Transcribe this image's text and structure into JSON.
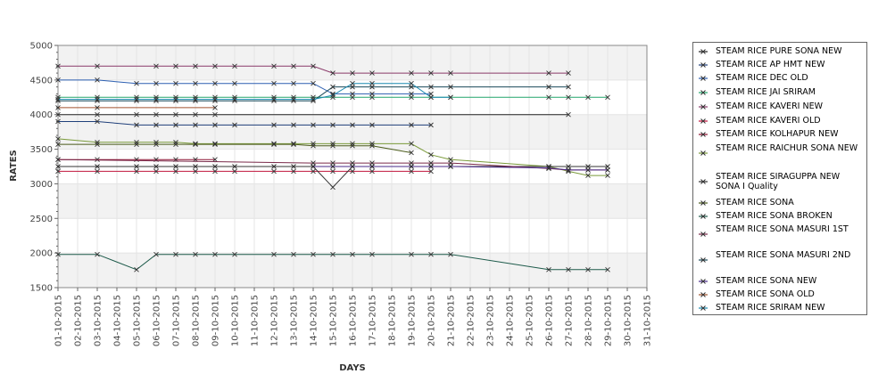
{
  "chart_data": {
    "type": "line",
    "title": "",
    "xlabel": "DAYS",
    "ylabel": "RATES",
    "ylim": [
      1500,
      5000
    ],
    "yticks": [
      "1500",
      "2000",
      "2500",
      "3000",
      "3500",
      "4000",
      "4500",
      "5000"
    ],
    "x": [
      "01-10-2015",
      "02-10-2015",
      "03-10-2015",
      "04-10-2015",
      "05-10-2015",
      "06-10-2015",
      "07-10-2015",
      "08-10-2015",
      "09-10-2015",
      "10-10-2015",
      "11-10-2015",
      "12-10-2015",
      "13-10-2015",
      "14-10-2015",
      "15-10-2015",
      "16-10-2015",
      "17-10-2015",
      "18-10-2015",
      "19-10-2015",
      "20-10-2015",
      "21-10-2015",
      "22-10-2015",
      "23-10-2015",
      "24-10-2015",
      "25-10-2015",
      "26-10-2015",
      "27-10-2015",
      "28-10-2015",
      "29-10-2015",
      "30-10-2015",
      "31-10-2015"
    ],
    "grid": true,
    "legend_position": "right",
    "series": [
      {
        "name": " STEAM RICE PURE SONA NEW",
        "color": "#222222",
        "points": [
          [
            0,
            4000
          ],
          [
            2,
            4000
          ],
          [
            4,
            4000
          ],
          [
            5,
            4000
          ],
          [
            6,
            4000
          ],
          [
            7,
            4000
          ],
          [
            8,
            4000
          ],
          [
            26,
            4000
          ]
        ]
      },
      {
        "name": "STEAM RICE AP HMT NEW",
        "color": "#1f3f7a",
        "points": [
          [
            0,
            3900
          ],
          [
            2,
            3900
          ],
          [
            4,
            3850
          ],
          [
            5,
            3850
          ],
          [
            6,
            3850
          ],
          [
            7,
            3850
          ],
          [
            8,
            3850
          ],
          [
            9,
            3850
          ],
          [
            11,
            3850
          ],
          [
            12,
            3850
          ],
          [
            13,
            3850
          ],
          [
            14,
            3850
          ],
          [
            15,
            3850
          ],
          [
            16,
            3850
          ],
          [
            18,
            3850
          ],
          [
            19,
            3850
          ]
        ]
      },
      {
        "name": "STEAM RICE DEC OLD",
        "color": "#2a5db0",
        "points": [
          [
            0,
            4500
          ],
          [
            2,
            4500
          ],
          [
            4,
            4450
          ],
          [
            5,
            4450
          ],
          [
            6,
            4450
          ],
          [
            7,
            4450
          ],
          [
            8,
            4450
          ],
          [
            9,
            4450
          ],
          [
            11,
            4450
          ],
          [
            12,
            4450
          ],
          [
            13,
            4450
          ],
          [
            14,
            4300
          ],
          [
            15,
            4300
          ],
          [
            16,
            4300
          ],
          [
            18,
            4300
          ],
          [
            19,
            4300
          ]
        ]
      },
      {
        "name": "STEAM RICE JAI SRIRAM",
        "color": "#22a66b",
        "points": [
          [
            0,
            4250
          ],
          [
            2,
            4250
          ],
          [
            4,
            4250
          ],
          [
            5,
            4250
          ],
          [
            6,
            4250
          ],
          [
            7,
            4250
          ],
          [
            8,
            4250
          ],
          [
            9,
            4250
          ],
          [
            11,
            4250
          ],
          [
            12,
            4250
          ],
          [
            13,
            4250
          ],
          [
            14,
            4250
          ],
          [
            15,
            4250
          ],
          [
            16,
            4250
          ],
          [
            18,
            4250
          ],
          [
            19,
            4250
          ],
          [
            20,
            4250
          ],
          [
            25,
            4250
          ],
          [
            26,
            4250
          ],
          [
            27,
            4250
          ],
          [
            28,
            4250
          ]
        ]
      },
      {
        "name": "STEAM RICE KAVERI NEW",
        "color": "#8a3a6a",
        "points": [
          [
            0,
            4700
          ],
          [
            2,
            4700
          ],
          [
            5,
            4700
          ],
          [
            6,
            4700
          ],
          [
            7,
            4700
          ],
          [
            8,
            4700
          ],
          [
            9,
            4700
          ],
          [
            11,
            4700
          ],
          [
            12,
            4700
          ],
          [
            13,
            4700
          ],
          [
            14,
            4600
          ],
          [
            15,
            4600
          ],
          [
            16,
            4600
          ],
          [
            18,
            4600
          ],
          [
            19,
            4600
          ],
          [
            20,
            4600
          ],
          [
            25,
            4600
          ],
          [
            26,
            4600
          ]
        ]
      },
      {
        "name": "STEAM RICE KAVERI OLD",
        "color": "#c0143c",
        "points": [
          [
            0,
            3180
          ],
          [
            2,
            3180
          ],
          [
            4,
            3180
          ],
          [
            5,
            3180
          ],
          [
            6,
            3180
          ],
          [
            7,
            3180
          ],
          [
            8,
            3180
          ],
          [
            9,
            3180
          ],
          [
            11,
            3180
          ],
          [
            12,
            3180
          ],
          [
            13,
            3180
          ],
          [
            14,
            3180
          ],
          [
            15,
            3180
          ],
          [
            16,
            3180
          ],
          [
            18,
            3180
          ],
          [
            19,
            3180
          ]
        ]
      },
      {
        "name": "STEAM RICE KOLHAPUR NEW",
        "color": "#8b1030",
        "points": [
          [
            0,
            3350
          ],
          [
            2,
            3350
          ],
          [
            4,
            3350
          ],
          [
            5,
            3350
          ],
          [
            6,
            3350
          ],
          [
            7,
            3350
          ],
          [
            8,
            3350
          ]
        ]
      },
      {
        "name": "STEAM RICE RAICHUR SONA NEW",
        "color": "#7a9a3a",
        "points": [
          [
            0,
            3650
          ],
          [
            2,
            3600
          ],
          [
            4,
            3600
          ],
          [
            5,
            3600
          ],
          [
            6,
            3600
          ],
          [
            7,
            3580
          ],
          [
            8,
            3580
          ],
          [
            11,
            3580
          ],
          [
            12,
            3580
          ],
          [
            13,
            3580
          ],
          [
            14,
            3580
          ],
          [
            15,
            3580
          ],
          [
            16,
            3580
          ],
          [
            18,
            3580
          ],
          [
            19,
            3420
          ],
          [
            20,
            3350
          ],
          [
            25,
            3250
          ],
          [
            26,
            3180
          ],
          [
            27,
            3120
          ],
          [
            28,
            3120
          ]
        ]
      },
      {
        "name": "STEAM RICE SIRAGUPPA NEW SONA I Quality",
        "color": "#333333",
        "points": [
          [
            0,
            3250
          ],
          [
            2,
            3250
          ],
          [
            4,
            3250
          ],
          [
            5,
            3250
          ],
          [
            6,
            3250
          ],
          [
            7,
            3250
          ],
          [
            8,
            3250
          ],
          [
            9,
            3250
          ],
          [
            11,
            3250
          ],
          [
            12,
            3250
          ],
          [
            13,
            3250
          ],
          [
            14,
            2950
          ],
          [
            15,
            3250
          ],
          [
            16,
            3250
          ],
          [
            18,
            3250
          ],
          [
            19,
            3250
          ],
          [
            20,
            3250
          ],
          [
            25,
            3250
          ],
          [
            26,
            3250
          ],
          [
            27,
            3250
          ],
          [
            28,
            3250
          ]
        ]
      },
      {
        "name": "STEAM RICE SONA",
        "color": "#4a5a1a",
        "points": [
          [
            0,
            3570
          ],
          [
            2,
            3570
          ],
          [
            4,
            3570
          ],
          [
            5,
            3570
          ],
          [
            6,
            3570
          ],
          [
            7,
            3570
          ],
          [
            8,
            3570
          ],
          [
            11,
            3570
          ],
          [
            12,
            3570
          ],
          [
            13,
            3550
          ],
          [
            14,
            3550
          ],
          [
            15,
            3550
          ],
          [
            16,
            3550
          ],
          [
            18,
            3450
          ]
        ]
      },
      {
        "name": "STEAM RICE SONA BROKEN",
        "color": "#1d5a4a",
        "points": [
          [
            0,
            1980
          ],
          [
            2,
            1980
          ],
          [
            4,
            1760
          ],
          [
            5,
            1980
          ],
          [
            6,
            1980
          ],
          [
            7,
            1980
          ],
          [
            8,
            1980
          ],
          [
            9,
            1980
          ],
          [
            11,
            1980
          ],
          [
            12,
            1980
          ],
          [
            13,
            1980
          ],
          [
            14,
            1980
          ],
          [
            15,
            1980
          ],
          [
            16,
            1980
          ],
          [
            18,
            1980
          ],
          [
            19,
            1980
          ],
          [
            20,
            1980
          ],
          [
            25,
            1760
          ],
          [
            26,
            1760
          ],
          [
            27,
            1760
          ],
          [
            28,
            1760
          ]
        ]
      },
      {
        "name": "STEAM RICE SONA MASURI 1ST",
        "color": "#7a2a4a",
        "points": [
          [
            0,
            3350
          ],
          [
            13,
            3300
          ],
          [
            14,
            3300
          ],
          [
            15,
            3300
          ],
          [
            16,
            3300
          ],
          [
            18,
            3300
          ],
          [
            19,
            3300
          ],
          [
            20,
            3300
          ],
          [
            25,
            3220
          ],
          [
            26,
            3200
          ],
          [
            27,
            3200
          ],
          [
            28,
            3200
          ]
        ]
      },
      {
        "name": "STEAM RICE SONA MASURI 2ND",
        "color": "#1a4a5a",
        "points": [
          [
            0,
            4200
          ],
          [
            2,
            4200
          ],
          [
            4,
            4200
          ],
          [
            5,
            4200
          ],
          [
            6,
            4200
          ],
          [
            7,
            4200
          ],
          [
            8,
            4200
          ],
          [
            9,
            4200
          ],
          [
            11,
            4200
          ],
          [
            12,
            4200
          ],
          [
            13,
            4200
          ],
          [
            14,
            4400
          ],
          [
            15,
            4400
          ],
          [
            16,
            4400
          ],
          [
            18,
            4400
          ],
          [
            19,
            4400
          ],
          [
            20,
            4400
          ],
          [
            25,
            4400
          ],
          [
            26,
            4400
          ]
        ]
      },
      {
        "name": "STEAM RICE SONA NEW",
        "color": "#4a2a8a",
        "points": [
          [
            13,
            3250
          ],
          [
            14,
            3250
          ],
          [
            15,
            3250
          ],
          [
            16,
            3250
          ],
          [
            18,
            3250
          ],
          [
            19,
            3250
          ],
          [
            20,
            3250
          ],
          [
            25,
            3230
          ],
          [
            26,
            3200
          ],
          [
            27,
            3200
          ],
          [
            28,
            3200
          ]
        ]
      },
      {
        "name": "STEAM RICE SONA OLD",
        "color": "#a0522d",
        "points": [
          [
            0,
            4100
          ],
          [
            2,
            4100
          ],
          [
            8,
            4100
          ]
        ]
      },
      {
        "name": "STEAM RICE SRIRAM NEW",
        "color": "#1a8ab0",
        "points": [
          [
            0,
            4220
          ],
          [
            2,
            4220
          ],
          [
            4,
            4220
          ],
          [
            5,
            4220
          ],
          [
            6,
            4220
          ],
          [
            7,
            4220
          ],
          [
            8,
            4220
          ],
          [
            9,
            4220
          ],
          [
            11,
            4220
          ],
          [
            12,
            4220
          ],
          [
            13,
            4220
          ],
          [
            14,
            4280
          ],
          [
            15,
            4450
          ],
          [
            16,
            4450
          ],
          [
            18,
            4450
          ],
          [
            19,
            4250
          ],
          [
            20,
            4250
          ]
        ]
      }
    ]
  },
  "legend": {
    "items": [
      {
        "label": " STEAM RICE PURE SONA NEW",
        "color": "#222222"
      },
      {
        "label": "STEAM RICE AP HMT NEW",
        "color": "#1f3f7a"
      },
      {
        "label": "STEAM RICE DEC OLD",
        "color": "#2a5db0"
      },
      {
        "label": "STEAM RICE JAI SRIRAM",
        "color": "#22a66b"
      },
      {
        "label": "STEAM RICE KAVERI NEW",
        "color": "#8a3a6a"
      },
      {
        "label": "STEAM RICE KAVERI OLD",
        "color": "#c0143c"
      },
      {
        "label": "STEAM RICE KOLHAPUR NEW",
        "color": "#8b1030"
      },
      {
        "label": "STEAM RICE RAICHUR SONA NEW",
        "color": "#7a9a3a"
      },
      {
        "label": "STEAM RICE SIRAGUPPA NEW SONA I Quality",
        "color": "#333333"
      },
      {
        "label": "STEAM RICE SONA",
        "color": "#4a5a1a"
      },
      {
        "label": "STEAM RICE SONA BROKEN",
        "color": "#1d5a4a"
      },
      {
        "label": "STEAM RICE SONA MASURI 1ST",
        "color": "#7a2a4a"
      },
      {
        "label": "STEAM RICE SONA MASURI 2ND",
        "color": "#1a4a5a"
      },
      {
        "label": "STEAM RICE SONA NEW",
        "color": "#4a2a8a"
      },
      {
        "label": "STEAM RICE SONA OLD",
        "color": "#a0522d"
      },
      {
        "label": "STEAM RICE SRIRAM NEW",
        "color": "#1a8ab0"
      }
    ]
  }
}
